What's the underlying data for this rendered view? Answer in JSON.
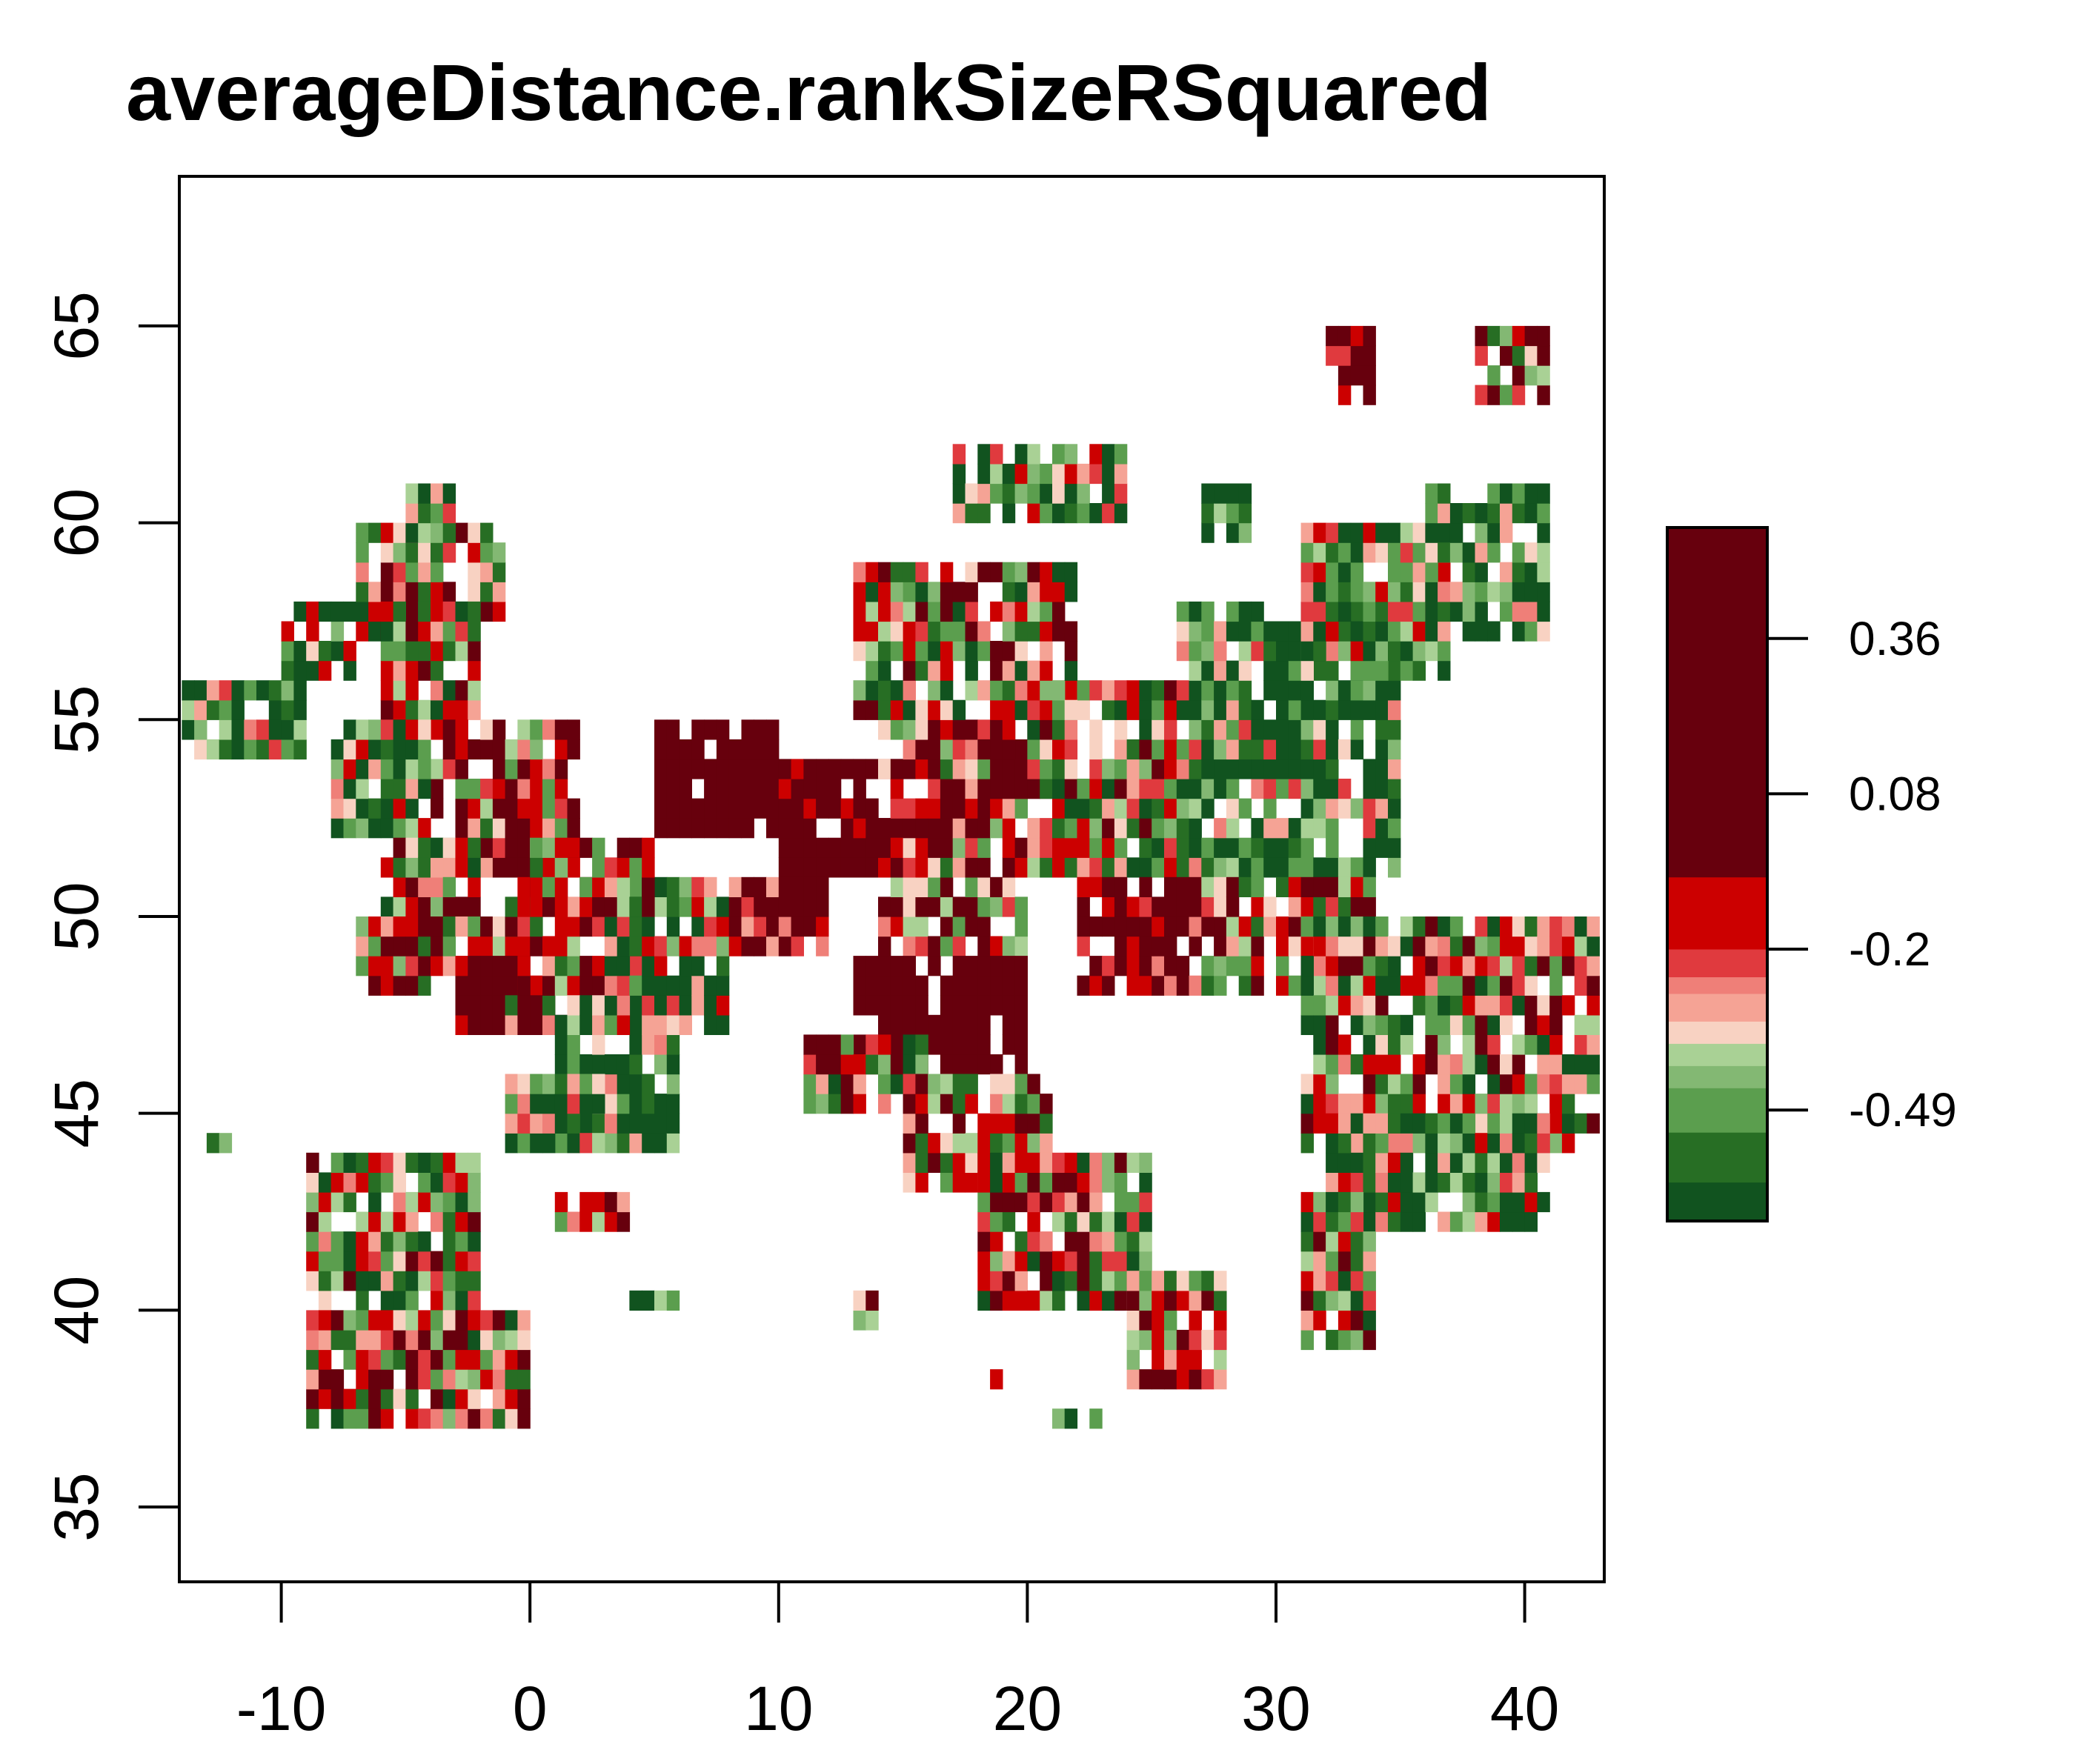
{
  "title": "averageDistance.rankSizeRSquared",
  "chart_data": {
    "type": "heatmap",
    "title": "averageDistance.rankSizeRSquared",
    "xlabel": "",
    "ylabel": "",
    "xlim": [
      -14.1,
      43.2
    ],
    "ylim": [
      33.1,
      68.8
    ],
    "x_ticks": [
      -10,
      0,
      10,
      20,
      30,
      40
    ],
    "x_tick_labels": [
      "-10",
      "0",
      "10",
      "20",
      "30",
      "40"
    ],
    "y_ticks": [
      35,
      40,
      45,
      50,
      55,
      60,
      65
    ],
    "y_tick_labels": [
      "35",
      "40",
      "45",
      "50",
      "55",
      "60",
      "65"
    ],
    "grid": false,
    "legend": {
      "placement": "right",
      "ticks": [
        -0.49,
        -0.2,
        0.08,
        0.36
      ],
      "tick_labels": [
        "-0.49",
        "-0.2",
        "0.08",
        "0.36"
      ],
      "range": [
        -0.69,
        0.56
      ],
      "bins": [
        {
          "from": -0.69,
          "to": -0.62,
          "color": "#11531f"
        },
        {
          "from": -0.62,
          "to": -0.53,
          "color": "#276e24"
        },
        {
          "from": -0.53,
          "to": -0.45,
          "color": "#5b9e4e"
        },
        {
          "from": -0.45,
          "to": -0.41,
          "color": "#83b873"
        },
        {
          "from": -0.41,
          "to": -0.37,
          "color": "#a9d195"
        },
        {
          "from": -0.37,
          "to": -0.33,
          "color": "#f8d2c2"
        },
        {
          "from": -0.33,
          "to": -0.28,
          "color": "#f5a395"
        },
        {
          "from": -0.28,
          "to": -0.25,
          "color": "#ef7f78"
        },
        {
          "from": -0.25,
          "to": -0.2,
          "color": "#e03a3e"
        },
        {
          "from": -0.2,
          "to": -0.07,
          "color": "#cc0000"
        },
        {
          "from": -0.07,
          "to": 0.56,
          "color": "#67000d"
        }
      ]
    },
    "cell_size_deg": 0.5,
    "regions": [
      {
        "lon": [
          -14,
          -9
        ],
        "lat": [
          54,
          56
        ],
        "value": -0.55
      },
      {
        "lon": [
          -10,
          -7
        ],
        "lat": [
          56,
          58
        ],
        "value": -0.43
      },
      {
        "lon": [
          -7,
          -1
        ],
        "lat": [
          57,
          60
        ],
        "value": -0.3
      },
      {
        "lon": [
          -5,
          -3
        ],
        "lat": [
          59,
          61
        ],
        "value": -0.6
      },
      {
        "lon": [
          -6,
          -2
        ],
        "lat": [
          55,
          58
        ],
        "value": -0.33
      },
      {
        "lon": [
          -4,
          2
        ],
        "lat": [
          51,
          55
        ],
        "value": -0.18
      },
      {
        "lon": [
          -8,
          -4
        ],
        "lat": [
          52,
          55
        ],
        "value": -0.5
      },
      {
        "lon": [
          -6,
          -2
        ],
        "lat": [
          50,
          52
        ],
        "value": -0.3
      },
      {
        "lon": [
          -7,
          0
        ],
        "lat": [
          48,
          50
        ],
        "value": -0.22
      },
      {
        "lon": [
          -3,
          1
        ],
        "lat": [
          47,
          49
        ],
        "value": 0.2
      },
      {
        "lon": [
          -1,
          5
        ],
        "lat": [
          47,
          51
        ],
        "value": -0.2
      },
      {
        "lon": [
          1,
          6
        ],
        "lat": [
          44,
          48
        ],
        "value": -0.62
      },
      {
        "lon": [
          -1,
          3
        ],
        "lat": [
          44,
          46
        ],
        "value": -0.55
      },
      {
        "lon": [
          3,
          8
        ],
        "lat": [
          47,
          51
        ],
        "value": -0.52
      },
      {
        "lon": [
          0,
          5
        ],
        "lat": [
          50,
          52
        ],
        "value": -0.25
      },
      {
        "lon": [
          5,
          10
        ],
        "lat": [
          52,
          55
        ],
        "value": 0.4
      },
      {
        "lon": [
          10,
          15
        ],
        "lat": [
          51,
          54
        ],
        "value": 0.15
      },
      {
        "lon": [
          8,
          12
        ],
        "lat": [
          49,
          51
        ],
        "value": 0.05
      },
      {
        "lon": [
          14,
          20
        ],
        "lat": [
          49,
          55
        ],
        "value": -0.18
      },
      {
        "lon": [
          18,
          21
        ],
        "lat": [
          53,
          55
        ],
        "value": 0.25
      },
      {
        "lon": [
          20,
          26
        ],
        "lat": [
          51,
          56
        ],
        "value": -0.35
      },
      {
        "lon": [
          26,
          35
        ],
        "lat": [
          51,
          58
        ],
        "value": -0.58
      },
      {
        "lon": [
          22,
          27
        ],
        "lat": [
          48,
          51
        ],
        "value": 0.1
      },
      {
        "lon": [
          27,
          34
        ],
        "lat": [
          48,
          51
        ],
        "value": -0.25
      },
      {
        "lon": [
          31,
          43
        ],
        "lat": [
          44,
          50
        ],
        "value": -0.35
      },
      {
        "lon": [
          32,
          41
        ],
        "lat": [
          42,
          45
        ],
        "value": -0.5
      },
      {
        "lon": [
          13,
          20
        ],
        "lat": [
          46,
          49
        ],
        "value": 0.35
      },
      {
        "lon": [
          11,
          16
        ],
        "lat": [
          45,
          47
        ],
        "value": -0.35
      },
      {
        "lon": [
          15,
          21
        ],
        "lat": [
          43,
          46
        ],
        "value": -0.2
      },
      {
        "lon": [
          18,
          25
        ],
        "lat": [
          40,
          44
        ],
        "value": -0.3
      },
      {
        "lon": [
          13,
          22
        ],
        "lat": [
          55,
          59
        ],
        "value": -0.35
      },
      {
        "lon": [
          17,
          24
        ],
        "lat": [
          60,
          62
        ],
        "value": -0.5
      },
      {
        "lon": [
          31,
          37
        ],
        "lat": [
          56,
          60
        ],
        "value": -0.45
      },
      {
        "lon": [
          -9,
          -2
        ],
        "lat": [
          40,
          44
        ],
        "value": -0.4
      },
      {
        "lon": [
          -9,
          0
        ],
        "lat": [
          37,
          40
        ],
        "value": -0.3
      },
      {
        "lon": [
          1,
          4
        ],
        "lat": [
          42,
          43
        ],
        "value": -0.2
      },
      {
        "lon": [
          24,
          28
        ],
        "lat": [
          38,
          41
        ],
        "value": -0.2
      },
      {
        "lon": [
          31,
          34
        ],
        "lat": [
          39,
          43
        ],
        "value": -0.3
      },
      {
        "lon": [
          32,
          34
        ],
        "lat": [
          63,
          65
        ],
        "value": 0.1
      },
      {
        "lon": [
          38,
          41
        ],
        "lat": [
          63,
          65
        ],
        "value": -0.2
      },
      {
        "lon": [
          36,
          41
        ],
        "lat": [
          57,
          61
        ],
        "value": -0.6
      },
      {
        "lon": [
          4,
          6
        ],
        "lat": [
          40,
          40.5
        ],
        "value": -0.65
      },
      {
        "lon": [
          21,
          23
        ],
        "lat": [
          37,
          37.5
        ],
        "value": -0.65
      },
      {
        "lon": [
          18,
          19
        ],
        "lat": [
          38,
          38.5
        ],
        "value": -0.45
      },
      {
        "lon": [
          13,
          14
        ],
        "lat": [
          39.5,
          40.5
        ],
        "value": -0.25
      },
      {
        "lon": [
          -13,
          -12
        ],
        "lat": [
          44,
          44.5
        ],
        "value": -0.5
      },
      {
        "lon": [
          27,
          29
        ],
        "lat": [
          59.5,
          61
        ],
        "value": -0.6
      }
    ]
  }
}
